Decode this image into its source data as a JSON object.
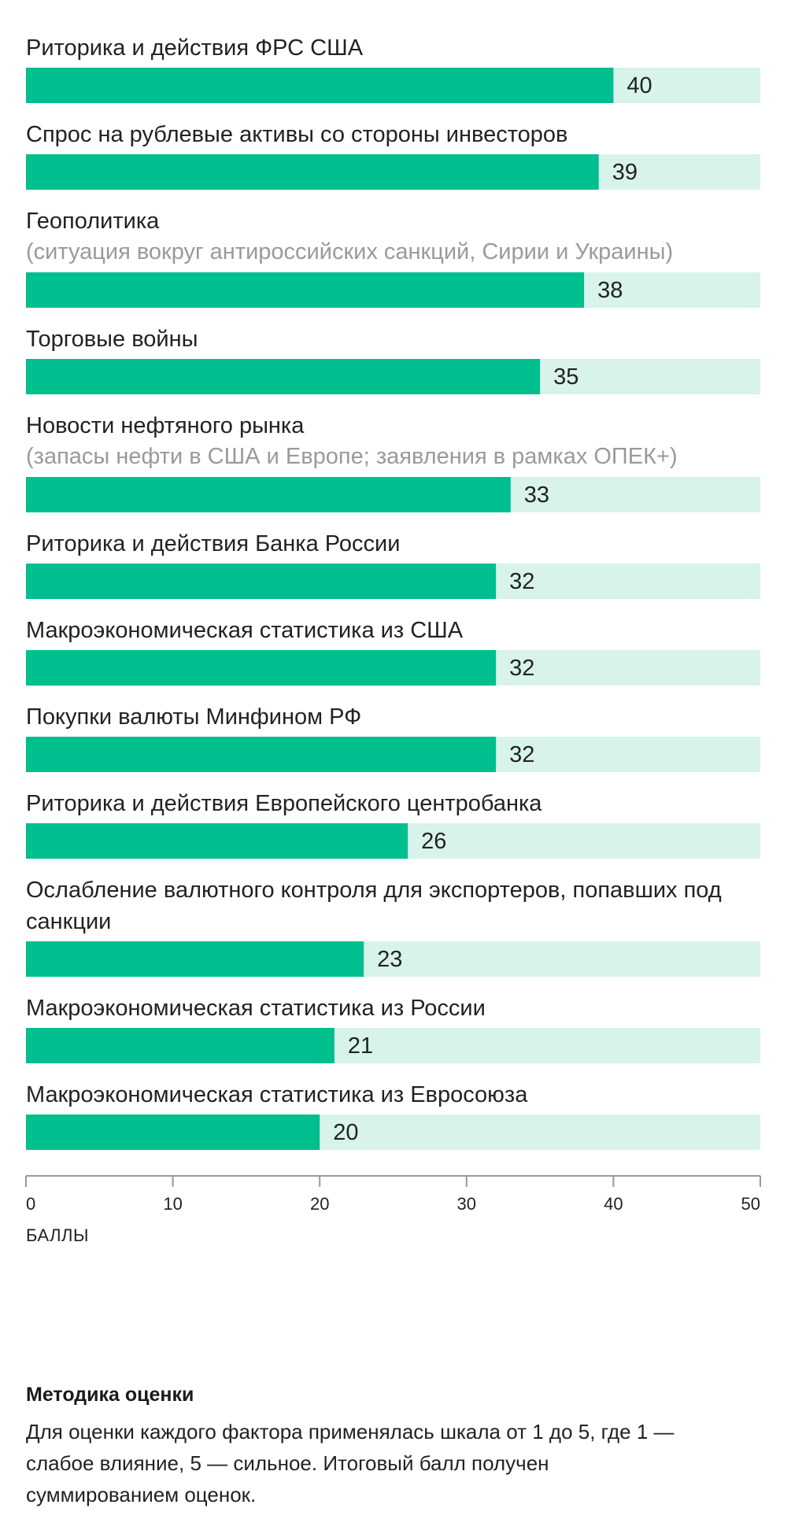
{
  "chart_data": {
    "type": "bar",
    "orientation": "horizontal",
    "categories": [
      {
        "label": "Риторика и действия ФРС США",
        "sub": ""
      },
      {
        "label": "Спрос на рублевые активы со стороны инвесторов",
        "sub": ""
      },
      {
        "label": "Геополитика",
        "sub": "(ситуация вокруг антироссийских санкций, Сирии и Украины)"
      },
      {
        "label": "Торговые войны",
        "sub": ""
      },
      {
        "label": "Новости нефтяного рынка",
        "sub": "(запасы нефти в США и Европе; заявления в рамках ОПЕК+)"
      },
      {
        "label": "Риторика и действия Банка России",
        "sub": ""
      },
      {
        "label": "Макроэкономическая статистика из США",
        "sub": ""
      },
      {
        "label": "Покупки валюты Минфином РФ",
        "sub": ""
      },
      {
        "label": "Риторика и действия Европейского центробанка",
        "sub": ""
      },
      {
        "label": "Ослабление валютного контроля для экспортеров, попавших под санкции",
        "sub": ""
      },
      {
        "label": "Макроэкономическая статистика из России",
        "sub": ""
      },
      {
        "label": "Макроэкономическая статистика из Евросоюза",
        "sub": ""
      }
    ],
    "values": [
      40,
      39,
      38,
      35,
      33,
      32,
      32,
      32,
      26,
      23,
      21,
      20
    ],
    "xlim": [
      0,
      50
    ],
    "xticks": [
      0,
      10,
      20,
      30,
      40,
      50
    ],
    "xlabel": "БАЛЛЫ",
    "bar_color": "#00bf8f",
    "track_color": "#d8f3ea",
    "axis_color": "#9a9a9a"
  },
  "methodology": {
    "title": "Методика оценки",
    "text": "Для оценки каждого фактора применялась шкала от 1 до 5, где 1 — слабое влияние, 5 — сильное. Итоговый балл получен суммированием оценок."
  }
}
